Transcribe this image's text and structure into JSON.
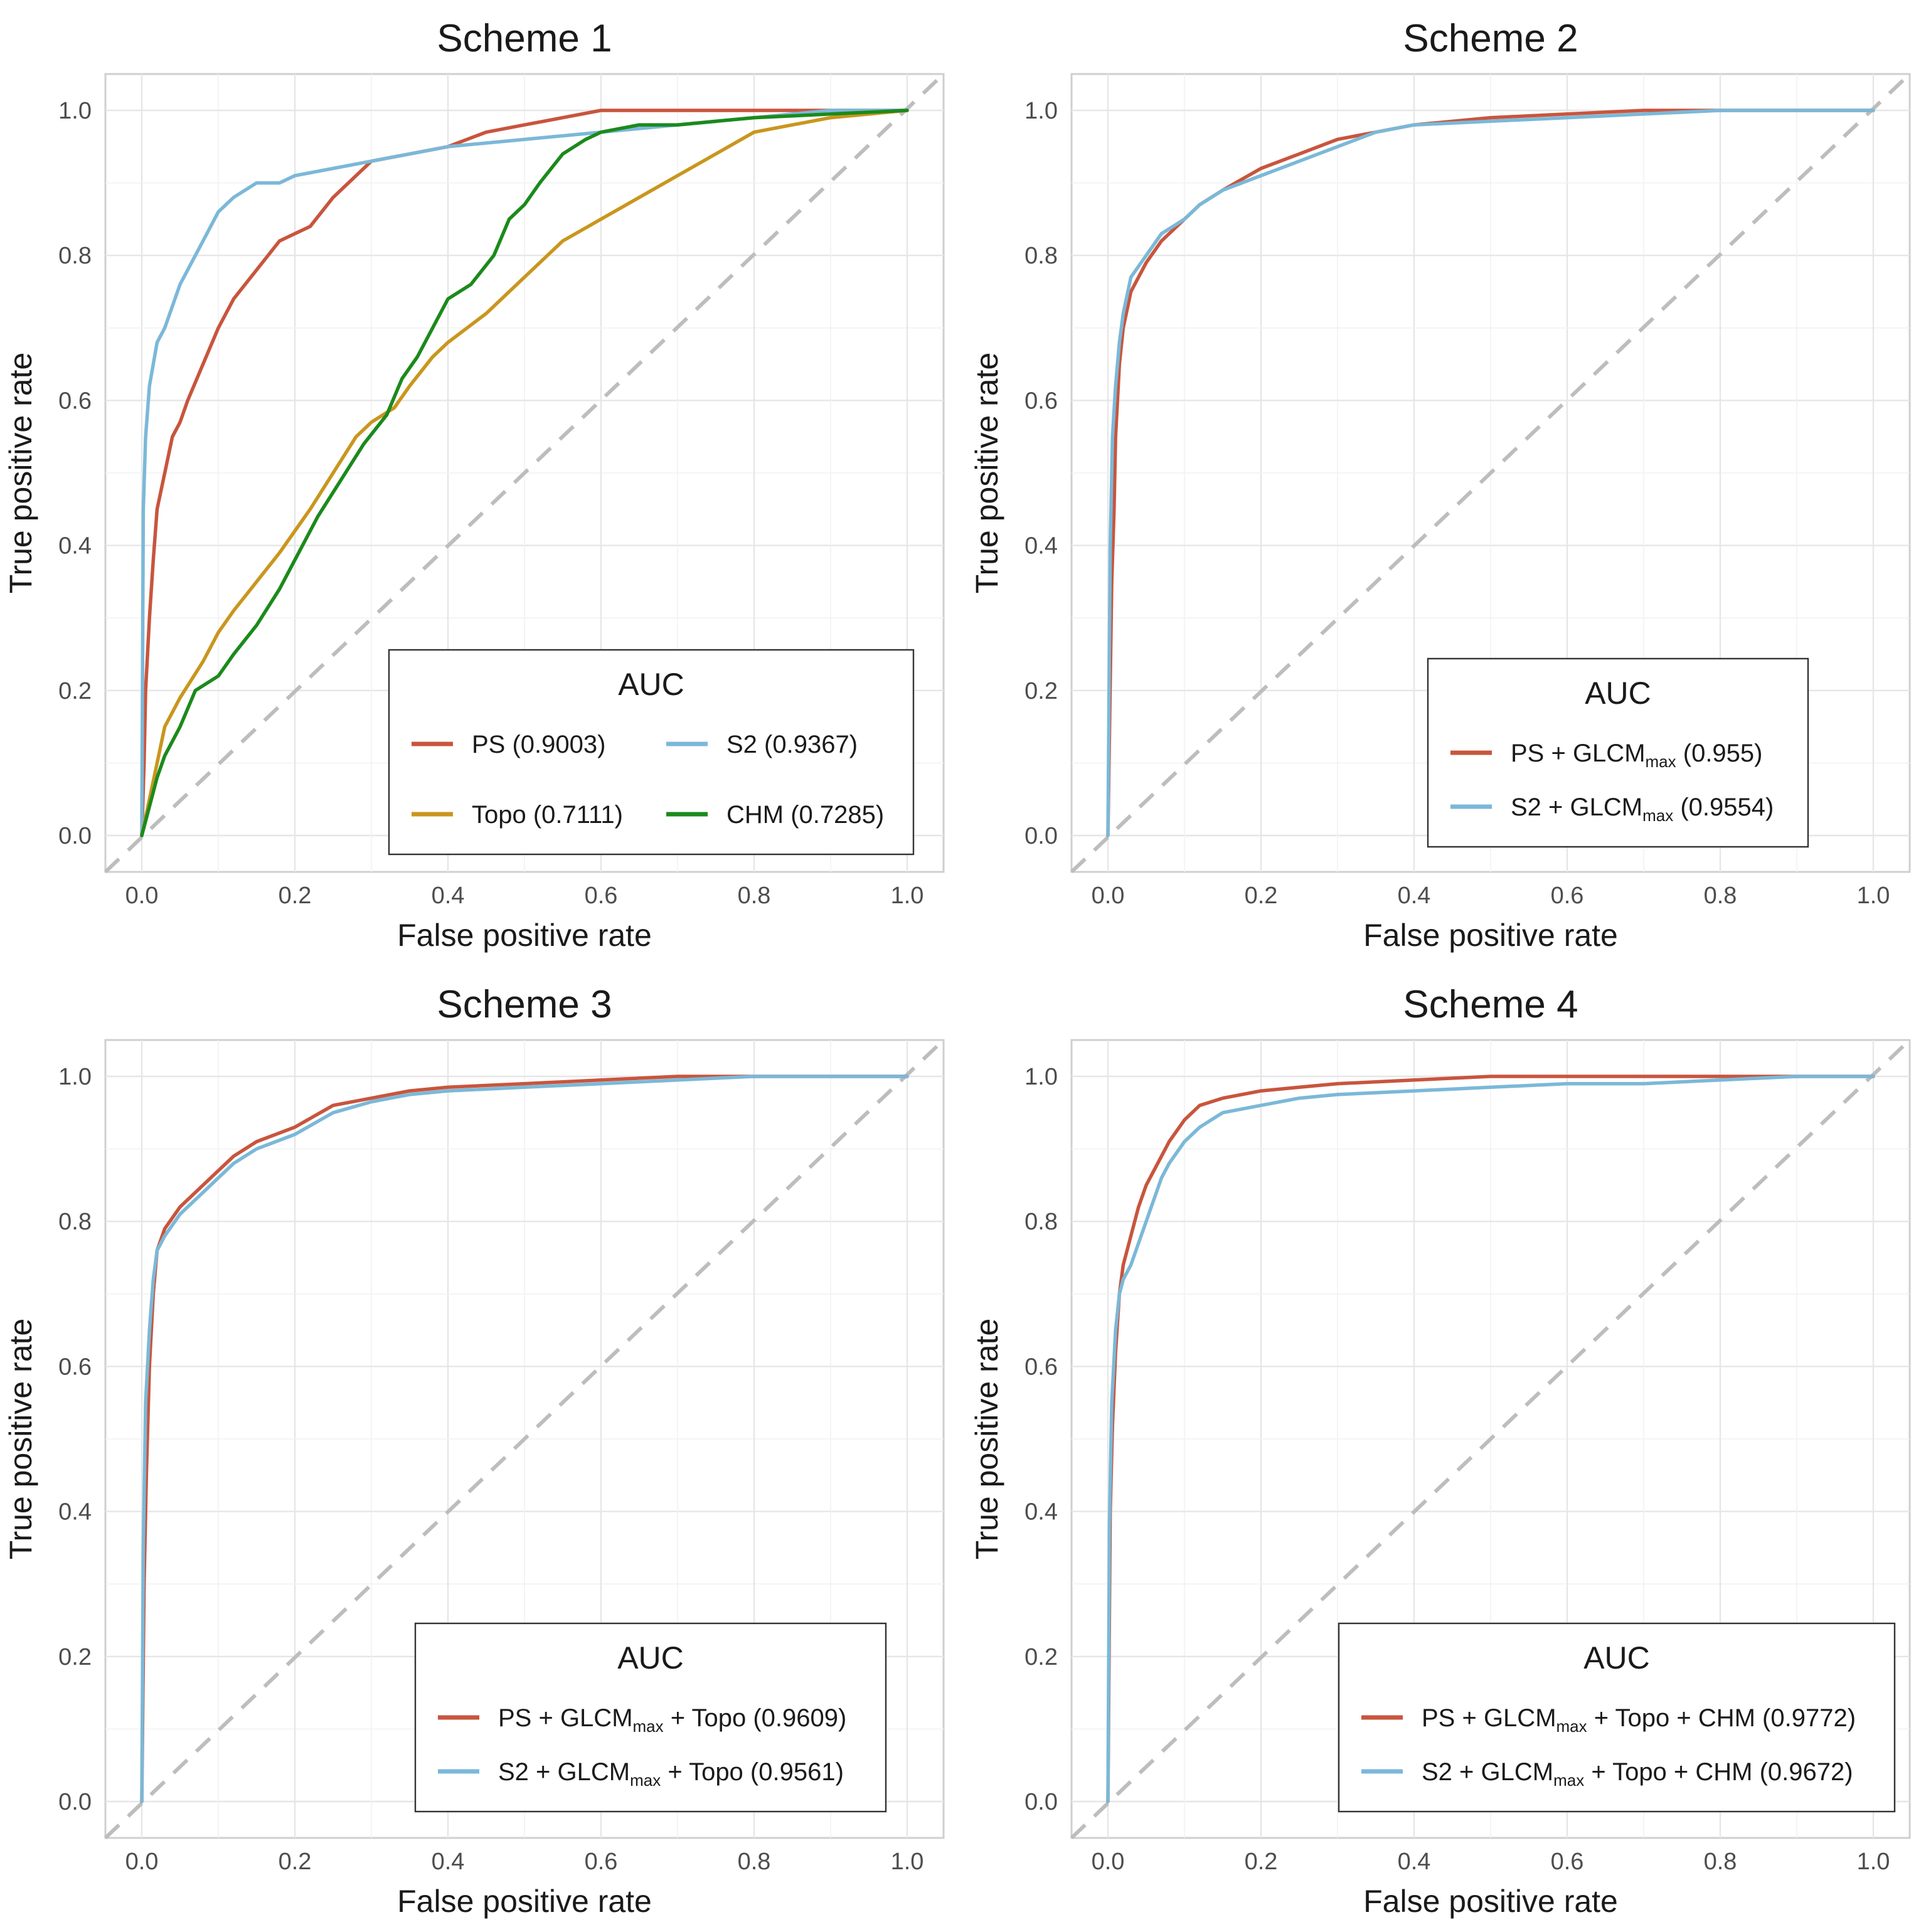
{
  "chart_data": [
    {
      "type": "line",
      "title": "Scheme 1",
      "xlabel": "False positive rate",
      "ylabel": "True positive rate",
      "xlim": [
        0,
        1
      ],
      "ylim": [
        0,
        1
      ],
      "xticks": [
        "0.0",
        "0.2",
        "0.4",
        "0.6",
        "0.8",
        "1.0"
      ],
      "yticks": [
        "0.0",
        "0.2",
        "0.4",
        "0.6",
        "0.8",
        "1.0"
      ],
      "grid": true,
      "reference_line": "diagonal",
      "legend": {
        "title": "AUC",
        "position": "bottom-right",
        "columns": 2,
        "entries": [
          {
            "label": "PS (0.9003)",
            "color": "#C8553D"
          },
          {
            "label": "S2 (0.9367)",
            "color": "#7BB8D8"
          },
          {
            "label": "Topo (0.7111)",
            "color": "#C9961E"
          },
          {
            "label": "CHM (0.7285)",
            "color": "#1B8A1B"
          }
        ]
      },
      "series": [
        {
          "name": "PS",
          "color": "#C8553D",
          "x": [
            0,
            0.003,
            0.005,
            0.01,
            0.015,
            0.02,
            0.03,
            0.04,
            0.05,
            0.06,
            0.08,
            0.1,
            0.12,
            0.15,
            0.18,
            0.2,
            0.22,
            0.25,
            0.28,
            0.3,
            0.35,
            0.4,
            0.45,
            0.5,
            0.55,
            0.6,
            0.65,
            0.7,
            0.8,
            0.9,
            1.0
          ],
          "y": [
            0,
            0.1,
            0.2,
            0.3,
            0.38,
            0.45,
            0.5,
            0.55,
            0.57,
            0.6,
            0.65,
            0.7,
            0.74,
            0.78,
            0.82,
            0.83,
            0.84,
            0.88,
            0.91,
            0.93,
            0.94,
            0.95,
            0.97,
            0.98,
            0.99,
            1.0,
            1.0,
            1.0,
            1.0,
            1.0,
            1.0
          ]
        },
        {
          "name": "S2",
          "color": "#7BB8D8",
          "x": [
            0,
            0.002,
            0.005,
            0.01,
            0.015,
            0.02,
            0.03,
            0.04,
            0.05,
            0.06,
            0.08,
            0.1,
            0.12,
            0.15,
            0.18,
            0.2,
            0.25,
            0.3,
            0.35,
            0.4,
            0.5,
            0.6,
            0.7,
            0.8,
            0.9,
            1.0
          ],
          "y": [
            0,
            0.45,
            0.55,
            0.62,
            0.65,
            0.68,
            0.7,
            0.73,
            0.76,
            0.78,
            0.82,
            0.86,
            0.88,
            0.9,
            0.9,
            0.91,
            0.92,
            0.93,
            0.94,
            0.95,
            0.96,
            0.97,
            0.98,
            0.99,
            1.0,
            1.0
          ]
        },
        {
          "name": "Topo",
          "color": "#C9961E",
          "x": [
            0,
            0.01,
            0.02,
            0.03,
            0.05,
            0.08,
            0.1,
            0.12,
            0.15,
            0.18,
            0.2,
            0.22,
            0.25,
            0.28,
            0.3,
            0.33,
            0.35,
            0.38,
            0.4,
            0.45,
            0.5,
            0.55,
            0.6,
            0.65,
            0.7,
            0.75,
            0.8,
            0.85,
            0.9,
            1.0
          ],
          "y": [
            0,
            0.05,
            0.1,
            0.15,
            0.19,
            0.24,
            0.28,
            0.31,
            0.35,
            0.39,
            0.42,
            0.45,
            0.5,
            0.55,
            0.57,
            0.59,
            0.62,
            0.66,
            0.68,
            0.72,
            0.77,
            0.82,
            0.85,
            0.88,
            0.91,
            0.94,
            0.97,
            0.98,
            0.99,
            1.0
          ]
        },
        {
          "name": "CHM",
          "color": "#1B8A1B",
          "x": [
            0,
            0.01,
            0.02,
            0.03,
            0.05,
            0.07,
            0.1,
            0.12,
            0.15,
            0.18,
            0.2,
            0.23,
            0.26,
            0.29,
            0.32,
            0.34,
            0.36,
            0.38,
            0.4,
            0.43,
            0.46,
            0.48,
            0.5,
            0.52,
            0.55,
            0.58,
            0.6,
            0.65,
            0.7,
            0.8,
            0.9,
            1.0
          ],
          "y": [
            0,
            0.04,
            0.08,
            0.11,
            0.15,
            0.2,
            0.22,
            0.25,
            0.29,
            0.34,
            0.38,
            0.44,
            0.49,
            0.54,
            0.58,
            0.63,
            0.66,
            0.7,
            0.74,
            0.76,
            0.8,
            0.85,
            0.87,
            0.9,
            0.94,
            0.96,
            0.97,
            0.98,
            0.98,
            0.99,
            0.995,
            1.0
          ]
        }
      ]
    },
    {
      "type": "line",
      "title": "Scheme 2",
      "xlabel": "False positive rate",
      "ylabel": "True positive rate",
      "xlim": [
        0,
        1
      ],
      "ylim": [
        0,
        1
      ],
      "xticks": [
        "0.0",
        "0.2",
        "0.4",
        "0.6",
        "0.8",
        "1.0"
      ],
      "yticks": [
        "0.0",
        "0.2",
        "0.4",
        "0.6",
        "0.8",
        "1.0"
      ],
      "grid": true,
      "reference_line": "diagonal",
      "legend": {
        "title": "AUC",
        "position": "bottom-right",
        "columns": 1,
        "entries": [
          {
            "label": "PS + GLCMmax (0.955)",
            "pre": "PS + GLCM",
            "sub": "max",
            "post": " (0.955)",
            "color": "#C8553D"
          },
          {
            "label": "S2 + GLCMmax (0.9554)",
            "pre": "S2 + GLCM",
            "sub": "max",
            "post": " (0.9554)",
            "color": "#7BB8D8"
          }
        ]
      },
      "series": [
        {
          "name": "PS + GLCMmax",
          "color": "#C8553D",
          "x": [
            0,
            0.005,
            0.008,
            0.01,
            0.015,
            0.02,
            0.03,
            0.05,
            0.07,
            0.1,
            0.12,
            0.15,
            0.2,
            0.25,
            0.3,
            0.35,
            0.4,
            0.5,
            0.6,
            0.7,
            0.8,
            0.9,
            1.0
          ],
          "y": [
            0,
            0.35,
            0.45,
            0.55,
            0.65,
            0.7,
            0.75,
            0.79,
            0.82,
            0.85,
            0.87,
            0.89,
            0.92,
            0.94,
            0.96,
            0.97,
            0.98,
            0.99,
            0.995,
            1.0,
            1.0,
            1.0,
            1.0
          ]
        },
        {
          "name": "S2 + GLCMmax",
          "color": "#7BB8D8",
          "x": [
            0,
            0.003,
            0.006,
            0.01,
            0.015,
            0.02,
            0.03,
            0.05,
            0.07,
            0.1,
            0.12,
            0.15,
            0.2,
            0.25,
            0.3,
            0.35,
            0.4,
            0.5,
            0.6,
            0.7,
            0.8,
            0.9,
            1.0
          ],
          "y": [
            0,
            0.4,
            0.55,
            0.62,
            0.68,
            0.72,
            0.77,
            0.8,
            0.83,
            0.85,
            0.87,
            0.89,
            0.91,
            0.93,
            0.95,
            0.97,
            0.98,
            0.985,
            0.99,
            0.995,
            1.0,
            1.0,
            1.0
          ]
        }
      ]
    },
    {
      "type": "line",
      "title": "Scheme 3",
      "xlabel": "False positive rate",
      "ylabel": "True positive rate",
      "xlim": [
        0,
        1
      ],
      "ylim": [
        0,
        1
      ],
      "xticks": [
        "0.0",
        "0.2",
        "0.4",
        "0.6",
        "0.8",
        "1.0"
      ],
      "yticks": [
        "0.0",
        "0.2",
        "0.4",
        "0.6",
        "0.8",
        "1.0"
      ],
      "grid": true,
      "reference_line": "diagonal",
      "legend": {
        "title": "AUC",
        "position": "bottom-right",
        "columns": 1,
        "entries": [
          {
            "label": "PS + GLCMmax + Topo (0.9609)",
            "pre": "PS + GLCM",
            "sub": "max",
            "post": " + Topo (0.9609)",
            "color": "#C8553D"
          },
          {
            "label": "S2 + GLCMmax + Topo (0.9561)",
            "pre": "S2 + GLCM",
            "sub": "max",
            "post": " + Topo (0.9561)",
            "color": "#7BB8D8"
          }
        ]
      },
      "series": [
        {
          "name": "PS + GLCMmax + Topo",
          "color": "#C8553D",
          "x": [
            0,
            0.003,
            0.006,
            0.01,
            0.015,
            0.02,
            0.03,
            0.05,
            0.08,
            0.1,
            0.12,
            0.15,
            0.2,
            0.25,
            0.3,
            0.35,
            0.4,
            0.5,
            0.6,
            0.7,
            0.8,
            0.9,
            1.0
          ],
          "y": [
            0,
            0.3,
            0.45,
            0.6,
            0.7,
            0.76,
            0.79,
            0.82,
            0.85,
            0.87,
            0.89,
            0.91,
            0.93,
            0.96,
            0.97,
            0.98,
            0.985,
            0.99,
            0.995,
            1.0,
            1.0,
            1.0,
            1.0
          ]
        },
        {
          "name": "S2 + GLCMmax + Topo",
          "color": "#7BB8D8",
          "x": [
            0,
            0.002,
            0.005,
            0.01,
            0.015,
            0.02,
            0.03,
            0.05,
            0.08,
            0.1,
            0.12,
            0.15,
            0.2,
            0.25,
            0.3,
            0.35,
            0.4,
            0.5,
            0.6,
            0.7,
            0.8,
            0.9,
            1.0
          ],
          "y": [
            0,
            0.35,
            0.55,
            0.65,
            0.72,
            0.76,
            0.78,
            0.81,
            0.84,
            0.86,
            0.88,
            0.9,
            0.92,
            0.95,
            0.965,
            0.975,
            0.98,
            0.985,
            0.99,
            0.995,
            1.0,
            1.0,
            1.0
          ]
        }
      ]
    },
    {
      "type": "line",
      "title": "Scheme 4",
      "xlabel": "False positive rate",
      "ylabel": "True positive rate",
      "xlim": [
        0,
        1
      ],
      "ylim": [
        0,
        1
      ],
      "xticks": [
        "0.0",
        "0.2",
        "0.4",
        "0.6",
        "0.8",
        "1.0"
      ],
      "yticks": [
        "0.0",
        "0.2",
        "0.4",
        "0.6",
        "0.8",
        "1.0"
      ],
      "grid": true,
      "reference_line": "diagonal",
      "legend": {
        "title": "AUC",
        "position": "bottom-right",
        "columns": 1,
        "entries": [
          {
            "label": "PS + GLCMmax + Topo + CHM (0.9772)",
            "pre": "PS + GLCM",
            "sub": "max",
            "post": " + Topo + CHM (0.9772)",
            "color": "#C8553D"
          },
          {
            "label": "S2 + GLCMmax + Topo + CHM (0.9672)",
            "pre": "S2 + GLCM",
            "sub": "max",
            "post": " + Topo + CHM (0.9672)",
            "color": "#7BB8D8"
          }
        ]
      },
      "series": [
        {
          "name": "PS + GLCMmax + Topo + CHM",
          "color": "#C8553D",
          "x": [
            0,
            0.003,
            0.006,
            0.01,
            0.015,
            0.02,
            0.03,
            0.04,
            0.05,
            0.06,
            0.07,
            0.08,
            0.1,
            0.12,
            0.15,
            0.2,
            0.25,
            0.3,
            0.4,
            0.5,
            0.6,
            0.7,
            0.8,
            0.9,
            1.0
          ],
          "y": [
            0,
            0.4,
            0.52,
            0.62,
            0.7,
            0.74,
            0.78,
            0.82,
            0.85,
            0.87,
            0.89,
            0.91,
            0.94,
            0.96,
            0.97,
            0.98,
            0.985,
            0.99,
            0.995,
            1.0,
            1.0,
            1.0,
            1.0,
            1.0,
            1.0
          ]
        },
        {
          "name": "S2 + GLCMmax + Topo + CHM",
          "color": "#7BB8D8",
          "x": [
            0,
            0.002,
            0.005,
            0.01,
            0.015,
            0.02,
            0.03,
            0.04,
            0.05,
            0.06,
            0.07,
            0.08,
            0.1,
            0.12,
            0.15,
            0.2,
            0.25,
            0.3,
            0.4,
            0.5,
            0.6,
            0.7,
            0.8,
            0.9,
            1.0
          ],
          "y": [
            0,
            0.38,
            0.55,
            0.65,
            0.7,
            0.72,
            0.74,
            0.77,
            0.8,
            0.83,
            0.86,
            0.88,
            0.91,
            0.93,
            0.95,
            0.96,
            0.97,
            0.975,
            0.98,
            0.985,
            0.99,
            0.99,
            0.995,
            1.0,
            1.0
          ]
        }
      ]
    }
  ]
}
